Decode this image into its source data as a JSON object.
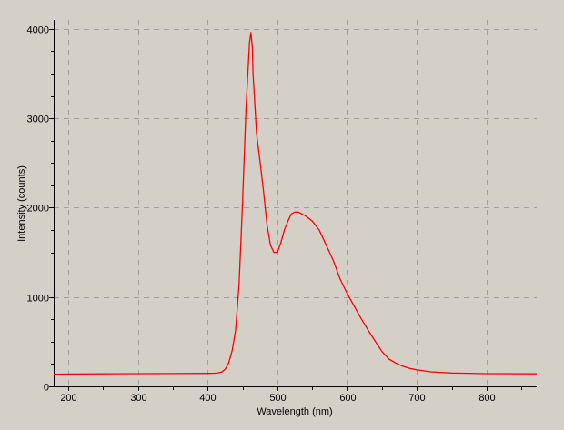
{
  "chart_data": {
    "type": "line",
    "title": "",
    "xlabel": "Wavelength (nm)",
    "ylabel": "Intensity (counts)",
    "xlim": [
      179,
      872
    ],
    "ylim": [
      0,
      4100
    ],
    "xticks": [
      200,
      300,
      400,
      500,
      600,
      700,
      800
    ],
    "yticks": [
      0,
      1000,
      2000,
      3000,
      4000
    ],
    "grid": true,
    "colors": {
      "background": "#d4d0c8",
      "line": "#ff0000",
      "grid": "#a0a0a0"
    },
    "series": [
      {
        "x": [
          179,
          200,
          250,
          300,
          350,
          400,
          410,
          415,
          420,
          425,
          430,
          435,
          440,
          445,
          450,
          455,
          460,
          462,
          464,
          465,
          470,
          475,
          480,
          485,
          490,
          495,
          500,
          505,
          510,
          515,
          520,
          525,
          530,
          535,
          540,
          550,
          560,
          570,
          580,
          590,
          600,
          610,
          620,
          630,
          640,
          650,
          660,
          670,
          680,
          690,
          700,
          720,
          750,
          800,
          872
        ],
        "y": [
          135,
          138,
          140,
          142,
          143,
          145,
          148,
          152,
          160,
          190,
          260,
          400,
          630,
          1140,
          2050,
          3130,
          3850,
          3960,
          3800,
          3510,
          2830,
          2520,
          2190,
          1810,
          1580,
          1500,
          1500,
          1610,
          1750,
          1850,
          1930,
          1950,
          1950,
          1930,
          1910,
          1850,
          1750,
          1580,
          1410,
          1200,
          1040,
          900,
          760,
          630,
          510,
          390,
          305,
          260,
          225,
          200,
          185,
          163,
          150,
          142,
          140
        ]
      }
    ]
  }
}
